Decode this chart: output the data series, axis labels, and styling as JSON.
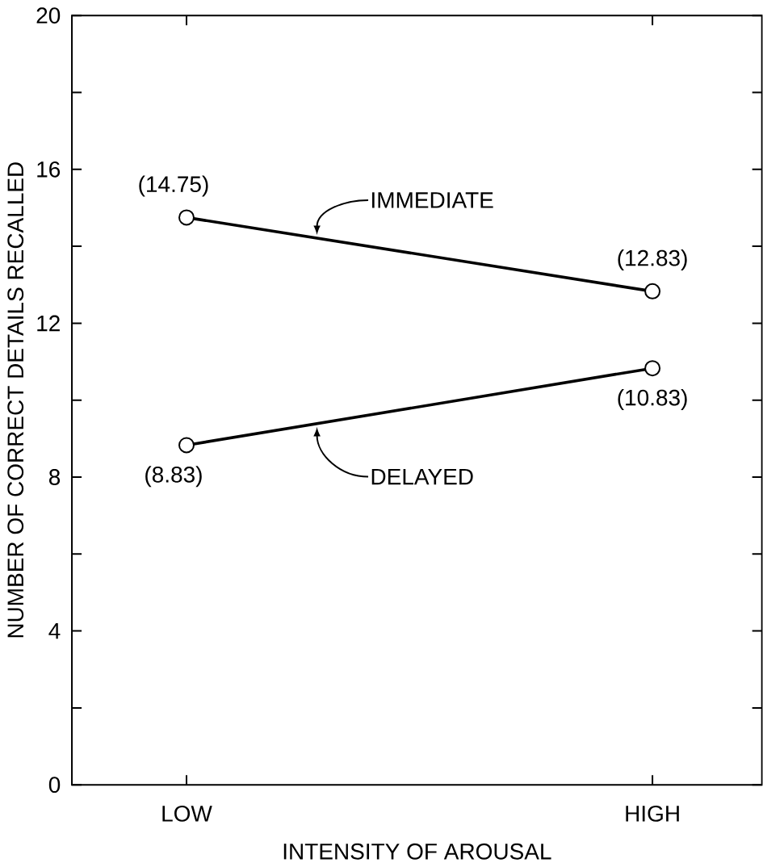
{
  "chart_data": {
    "type": "line",
    "xlabel": "INTENSITY OF AROUSAL",
    "ylabel": "NUMBER OF CORRECT DETAILS RECALLED",
    "categories": [
      "LOW",
      "HIGH"
    ],
    "series": [
      {
        "name": "IMMEDIATE",
        "color": "#000000",
        "values": [
          14.75,
          12.83
        ],
        "value_labels": [
          "(14.75)",
          "(12.83)"
        ]
      },
      {
        "name": "DELAYED",
        "color": "#000000",
        "values": [
          8.83,
          10.83
        ],
        "value_labels": [
          "(8.83)",
          "(10.83)"
        ]
      }
    ],
    "ylim": [
      0,
      20
    ],
    "yticks": [
      0,
      {
        "value": 2,
        "label": null
      },
      4,
      {
        "value": 6,
        "label": null
      },
      8,
      {
        "value": 10,
        "label": null
      },
      12,
      {
        "value": 14,
        "label": null
      },
      16,
      {
        "value": 18,
        "label": null
      },
      20
    ],
    "marker": "circle",
    "line_style": "solid"
  }
}
